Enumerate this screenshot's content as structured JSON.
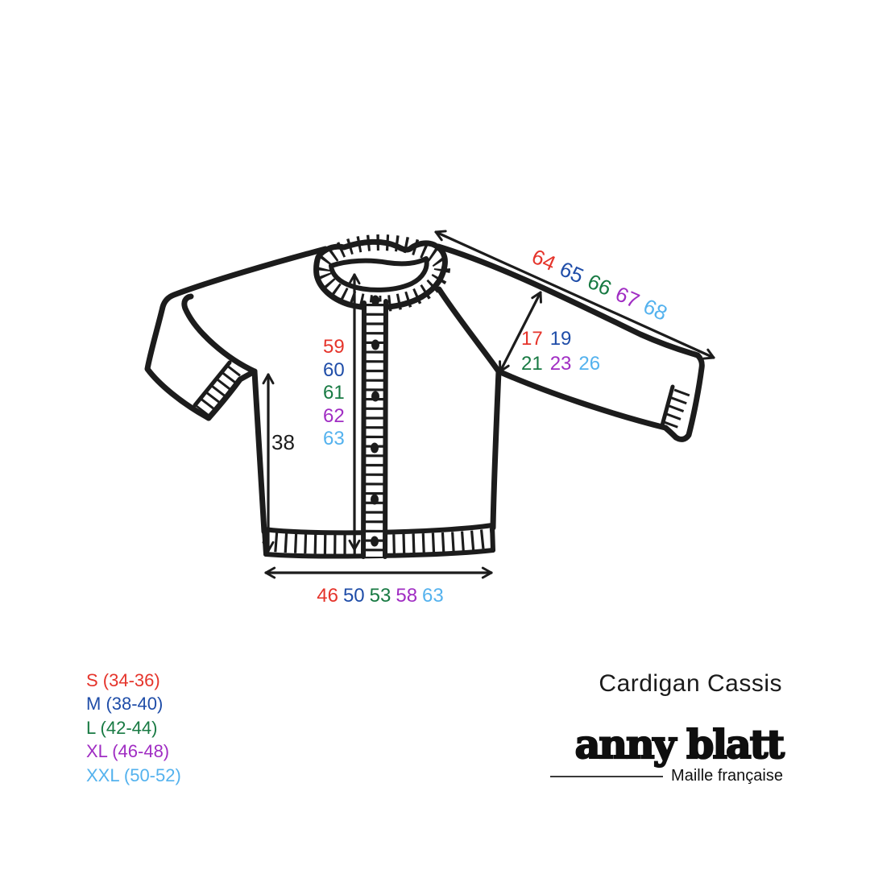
{
  "palette": [
    "#e5342b",
    "#1f4da8",
    "#187a43",
    "#a02dc3",
    "#54b2ee"
  ],
  "ink": "#1c1c1c",
  "measurements": {
    "overall_width": [
      "64",
      "65",
      "66",
      "67",
      "68"
    ],
    "sleeve_row1": [
      "17",
      "19"
    ],
    "sleeve_row2": [
      "21",
      "23",
      "26"
    ],
    "total_length": [
      "59",
      "60",
      "61",
      "62",
      "63"
    ],
    "side_length": "38",
    "bottom_width": [
      "46",
      "50",
      "53",
      "58",
      "63"
    ]
  },
  "legend": {
    "items": [
      {
        "label": "S (34-36)"
      },
      {
        "label": "M (38-40)"
      },
      {
        "label": "L (42-44)"
      },
      {
        "label": "XL (46-48)"
      },
      {
        "label": "XXL (50-52)"
      }
    ]
  },
  "header": {
    "title": "Cardigan Cassis"
  },
  "brand": {
    "name": "anny blatt",
    "tagline": "Maille française"
  }
}
